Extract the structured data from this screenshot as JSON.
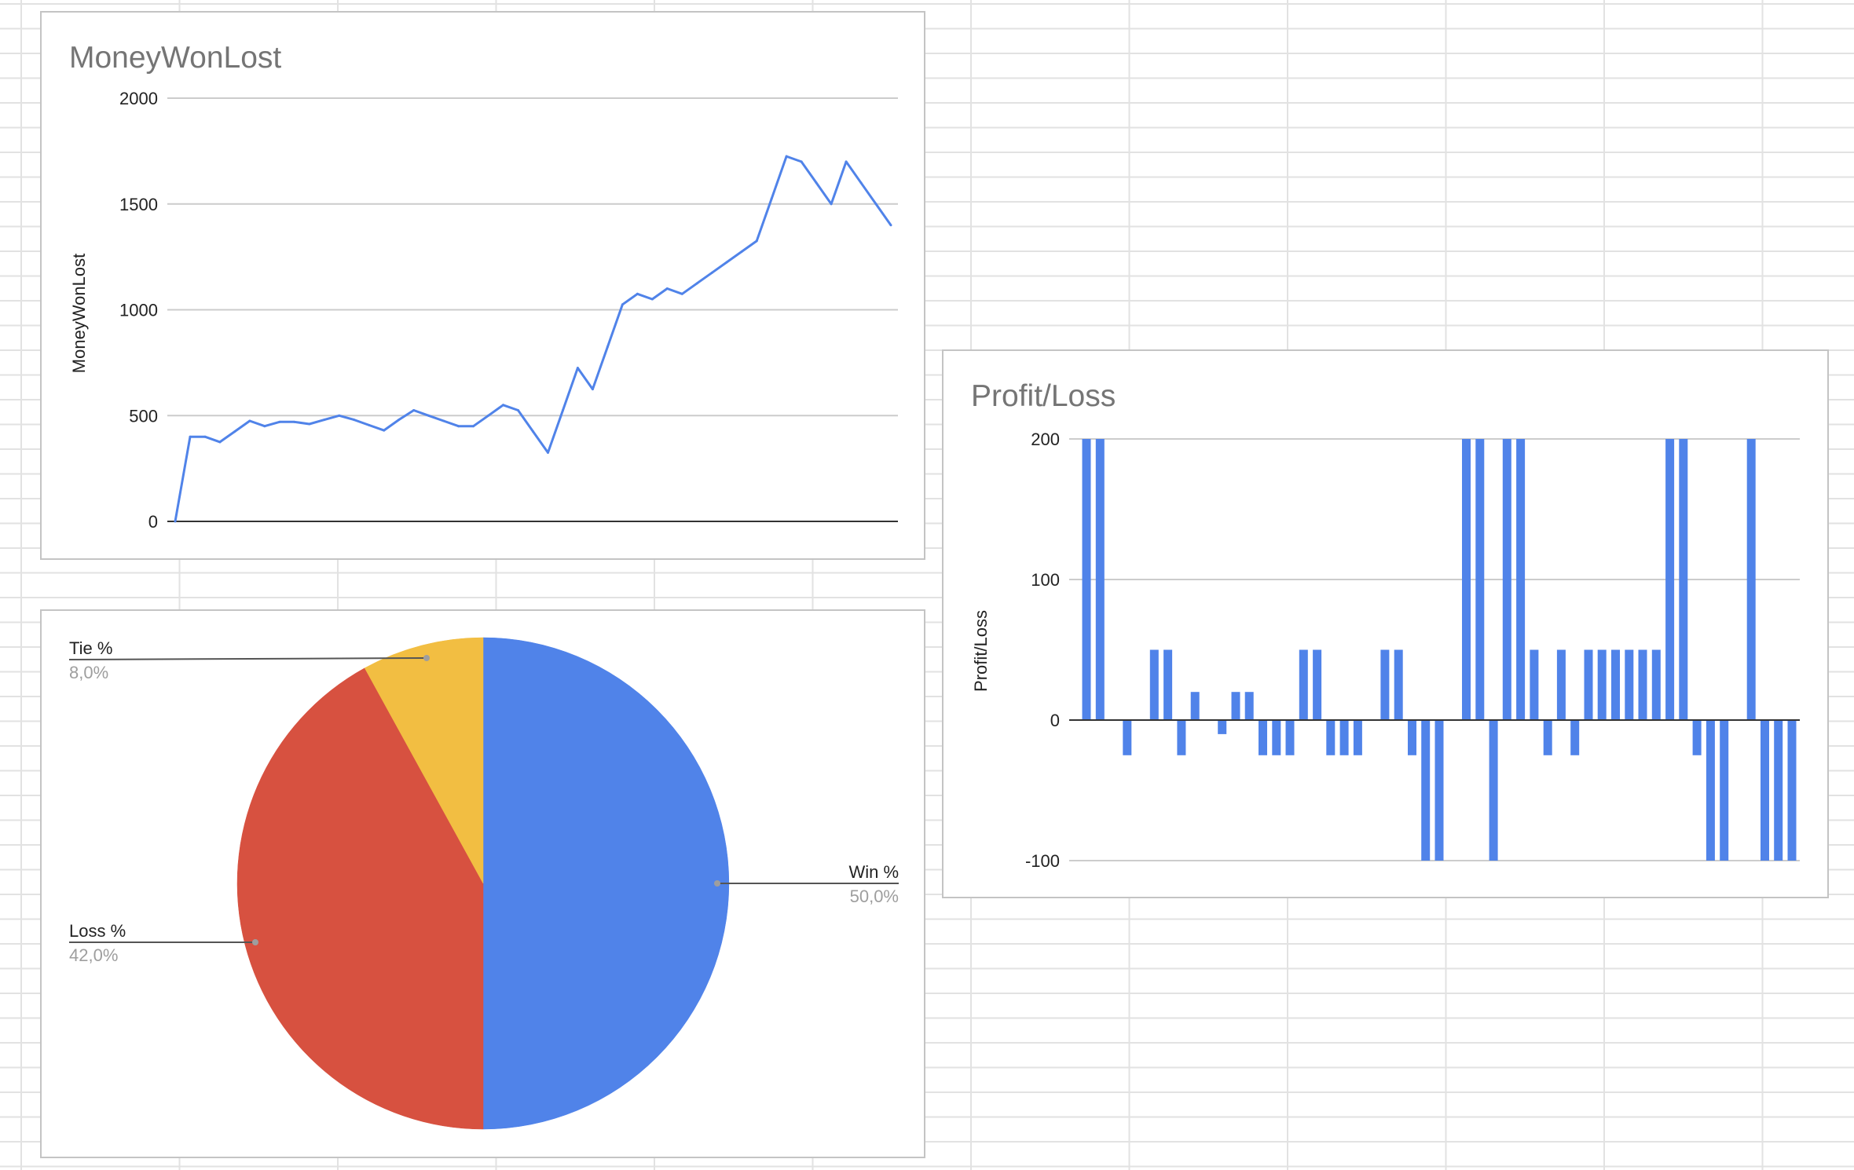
{
  "chart_data": [
    {
      "type": "line",
      "title": "MoneyWonLost",
      "xlabel": "",
      "ylabel": "MoneyWonLost",
      "ylim": [
        0,
        2000
      ],
      "yticks": [
        0,
        500,
        1000,
        1500,
        2000
      ],
      "ytick_labels": [
        "0",
        "500",
        "1000",
        "1500",
        "2000"
      ],
      "grid": true,
      "color": "#5083E9",
      "series": [
        {
          "values": [
            0,
            400,
            400,
            375,
            425,
            475,
            450,
            470,
            470,
            460,
            480,
            500,
            480,
            455,
            430,
            480,
            525,
            500,
            475,
            450,
            450,
            500,
            550,
            525,
            425,
            325,
            525,
            725,
            625,
            825,
            1025,
            1075,
            1050,
            1100,
            1075,
            1125,
            1175,
            1225,
            1275,
            1325,
            1525,
            1725,
            1700,
            1600,
            1500,
            1700,
            1600,
            1500,
            1400
          ]
        }
      ]
    },
    {
      "type": "bar",
      "title": "Profit/Loss",
      "xlabel": "",
      "ylabel": "Profit/Loss",
      "ylim": [
        -100,
        200
      ],
      "yticks": [
        -100,
        0,
        100,
        200
      ],
      "ytick_labels": [
        "-100",
        "0",
        "100",
        "200"
      ],
      "grid": true,
      "color": "#5083E9",
      "series": [
        {
          "values": [
            200,
            200,
            0,
            -25,
            0,
            50,
            50,
            -25,
            20,
            0,
            -10,
            20,
            20,
            -25,
            -25,
            -25,
            50,
            50,
            -25,
            -25,
            -25,
            0,
            50,
            50,
            -25,
            -100,
            -100,
            0,
            200,
            200,
            -100,
            200,
            200,
            50,
            -25,
            50,
            -25,
            50,
            50,
            50,
            50,
            50,
            50,
            200,
            200,
            -25,
            -100,
            -100,
            0,
            200,
            -100,
            -100,
            -100
          ]
        }
      ]
    },
    {
      "type": "pie",
      "title": "",
      "slices": [
        {
          "label": "Win %",
          "value": 50.0,
          "display": "50,0%",
          "color": "#5083E9"
        },
        {
          "label": "Loss %",
          "value": 42.0,
          "display": "42,0%",
          "color": "#D75140"
        },
        {
          "label": "Tie %",
          "value": 8.0,
          "display": "8,0%",
          "color": "#F2BE42"
        }
      ]
    }
  ]
}
